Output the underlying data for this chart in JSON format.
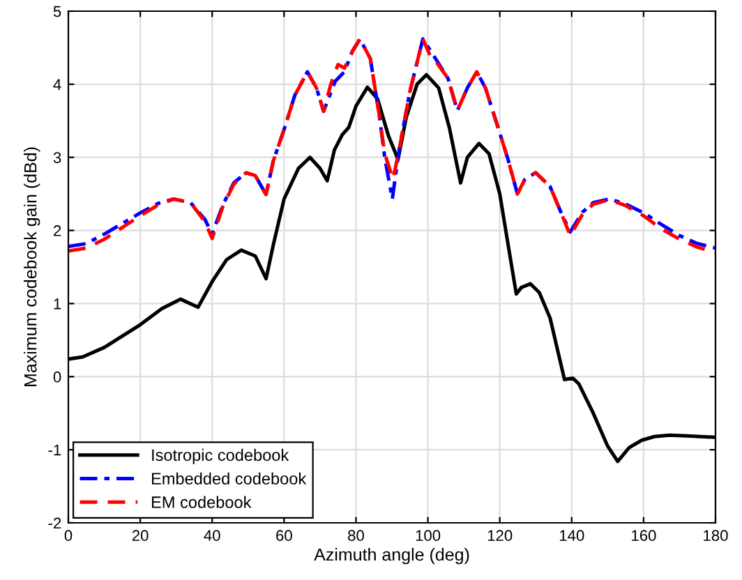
{
  "chart_data": {
    "type": "line",
    "xlabel": "Azimuth angle (deg)",
    "ylabel": "Maximum codebook gain (dBd)",
    "xlim": [
      0,
      180
    ],
    "xticks": [
      0,
      20,
      40,
      60,
      80,
      100,
      120,
      140,
      160,
      180
    ],
    "ylim": [
      -2,
      5
    ],
    "yticks": [
      -2,
      -1,
      0,
      1,
      2,
      3,
      4,
      5
    ],
    "grid": true,
    "legend": "bottom left",
    "series": [
      {
        "name": "Isotropic codebook",
        "color": "#000000",
        "line_style": "solid",
        "x": [
          0,
          4,
          10,
          20,
          26,
          31.2,
          36.1,
          40,
          44,
          48.1,
          52,
          55,
          57,
          60,
          64,
          67.2,
          70,
          72,
          74,
          76.2,
          78,
          80,
          83.2,
          86,
          89,
          91.7,
          94,
          97,
          99.6,
          103,
          106,
          109.1,
          111,
          114.2,
          117,
          120,
          122,
          124.6,
          126,
          128.5,
          131,
          134,
          138,
          140.3,
          142,
          146,
          150,
          152.8,
          156,
          159.5,
          163,
          167.2,
          172,
          180
        ],
        "values": [
          0.24,
          0.27,
          0.4,
          0.71,
          0.93,
          1.06,
          0.95,
          1.3,
          1.6,
          1.73,
          1.65,
          1.34,
          1.8,
          2.43,
          2.85,
          3.0,
          2.85,
          2.68,
          3.1,
          3.31,
          3.41,
          3.7,
          3.96,
          3.8,
          3.3,
          2.97,
          3.55,
          4.0,
          4.13,
          3.95,
          3.4,
          2.65,
          3.0,
          3.19,
          3.05,
          2.5,
          1.9,
          1.13,
          1.22,
          1.27,
          1.15,
          0.8,
          -0.04,
          -0.02,
          -0.1,
          -0.5,
          -0.95,
          -1.16,
          -0.97,
          -0.87,
          -0.82,
          -0.8,
          -0.81,
          -0.83
        ]
      },
      {
        "name": "Embedded codebook",
        "color": "#0000ff",
        "line_style": "dashdot",
        "x": [
          0,
          5,
          10,
          20,
          25,
          29.3,
          34,
          38,
          40,
          43,
          46,
          49.4,
          52,
          55,
          57,
          60,
          63,
          66.5,
          69,
          71,
          74.2,
          76.8,
          79,
          81.1,
          84,
          86.5,
          88,
          90.1,
          92,
          95,
          98.6,
          102.4,
          105.6,
          108.2,
          111,
          113.6,
          116,
          119.7,
          122.3,
          124.9,
          127,
          130,
          134,
          137,
          139.6,
          143,
          146,
          150.5,
          155,
          160,
          165,
          170,
          175,
          180
        ],
        "values": [
          1.78,
          1.82,
          1.95,
          2.24,
          2.37,
          2.43,
          2.38,
          2.15,
          1.95,
          2.35,
          2.65,
          2.79,
          2.75,
          2.49,
          2.95,
          3.38,
          3.85,
          4.17,
          3.95,
          3.63,
          4.04,
          4.17,
          4.45,
          4.62,
          4.35,
          3.57,
          3.0,
          2.43,
          3.1,
          3.9,
          4.62,
          4.33,
          4.08,
          3.64,
          3.95,
          4.17,
          3.95,
          3.38,
          2.97,
          2.5,
          2.7,
          2.79,
          2.6,
          2.25,
          1.98,
          2.25,
          2.38,
          2.43,
          2.36,
          2.24,
          2.08,
          1.93,
          1.82,
          1.76
        ]
      },
      {
        "name": "EM codebook",
        "color": "#ff0000",
        "line_style": "dashed",
        "x": [
          0,
          5,
          10,
          20,
          25,
          29.3,
          34,
          38,
          40,
          43,
          46,
          49.4,
          52,
          55,
          57,
          60,
          63,
          66.5,
          69,
          71,
          73,
          75,
          76.8,
          79,
          81.1,
          84,
          86.5,
          88,
          90.3,
          92,
          95,
          98.6,
          101,
          102.4,
          105.6,
          108.2,
          111,
          113.6,
          116,
          119.7,
          122.3,
          124.9,
          127,
          130,
          134,
          137,
          139.6,
          143,
          146,
          150.5,
          155,
          160,
          165,
          170,
          175,
          180
        ],
        "values": [
          1.72,
          1.76,
          1.88,
          2.2,
          2.35,
          2.43,
          2.38,
          2.12,
          1.89,
          2.33,
          2.63,
          2.79,
          2.75,
          2.49,
          2.95,
          3.38,
          3.85,
          4.17,
          3.95,
          3.63,
          4.0,
          4.27,
          4.22,
          4.45,
          4.62,
          4.35,
          3.57,
          3.05,
          2.7,
          3.1,
          3.9,
          4.62,
          4.35,
          4.3,
          4.08,
          3.64,
          3.95,
          4.17,
          3.95,
          3.38,
          2.97,
          2.5,
          2.7,
          2.79,
          2.6,
          2.25,
          1.93,
          2.22,
          2.36,
          2.42,
          2.34,
          2.2,
          2.02,
          1.88,
          1.77,
          1.7
        ]
      }
    ]
  }
}
